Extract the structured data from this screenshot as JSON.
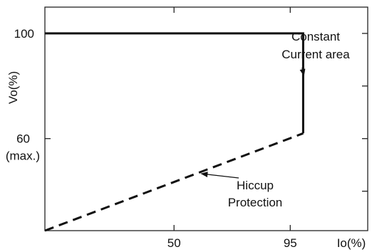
{
  "chart_data": {
    "type": "line",
    "xlabel": "Io(%)",
    "ylabel": "Vo(%)",
    "x_ticks": [
      {
        "value": 50,
        "label": "50"
      },
      {
        "value": 95,
        "label": "95"
      }
    ],
    "y_ticks": [
      {
        "value": 100,
        "label": "100"
      },
      {
        "value": 60,
        "label": "60",
        "sublabel": "(max.)"
      }
    ],
    "xlim": [
      0,
      125
    ],
    "ylim": [
      25,
      110
    ],
    "grid": false,
    "series": [
      {
        "style": "solid",
        "x": [
          0,
          100,
          100
        ],
        "y": [
          100,
          100,
          62
        ]
      },
      {
        "style": "dashed",
        "x": [
          0,
          100
        ],
        "y": [
          25,
          62
        ]
      }
    ],
    "annotations": [
      {
        "lines": [
          "Constant",
          "Current area"
        ],
        "points_to": {
          "x": 100,
          "y": 84
        }
      },
      {
        "lines": [
          "Hiccup",
          "Protection"
        ],
        "points_to": {
          "x": 60,
          "y": 48
        }
      }
    ],
    "colors": {
      "line": "#111111",
      "axis": "#222222"
    }
  }
}
